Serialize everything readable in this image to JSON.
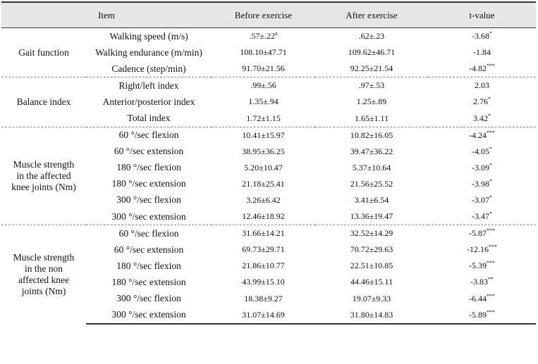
{
  "headers": {
    "item": "Item",
    "before": "Before  exercise",
    "after": "After  exercise",
    "t": "t-value"
  },
  "groups": [
    {
      "label": "Gait  function",
      "rows": [
        {
          "item": "Walking  speed  (m/s)",
          "before": ".57±.22",
          "before_sup": "a",
          "after": ".62±.23",
          "t": "-3.68",
          "sig": "*"
        },
        {
          "item": "Walking  endurance  (m/min)",
          "before": "108.10±47.71",
          "before_sup": "",
          "after": "109.62±46.71",
          "t": "-1.84",
          "sig": ""
        },
        {
          "item": "Cadence  (step/min)",
          "before": "91.70±21.56",
          "before_sup": "",
          "after": "92.25±21.54",
          "t": "-4.82",
          "sig": "***"
        }
      ]
    },
    {
      "label": "Balance  index",
      "rows": [
        {
          "item": "Right/left  index",
          "before": ".99±.56",
          "before_sup": "",
          "after": ".97±.53",
          "t": "2.03",
          "sig": ""
        },
        {
          "item": "Anterior/posterior  index",
          "before": "1.35±.94",
          "before_sup": "",
          "after": "1.25±.89",
          "t": "2.76",
          "sig": "*"
        },
        {
          "item": "Total  index",
          "before": "1.72±1.15",
          "before_sup": "",
          "after": "1.65±1.11",
          "t": "3.42",
          "sig": "*"
        }
      ]
    },
    {
      "label": "Muscle  strength\nin  the  affected\nknee  joints  (Nm)",
      "rows": [
        {
          "item": "60  °/sec  flexion",
          "before": "10.41±15.97",
          "before_sup": "",
          "after": "10.82±16.05",
          "t": "-4.24",
          "sig": "***"
        },
        {
          "item": "60  °/sec  extension",
          "before": "38.95±36.25",
          "before_sup": "",
          "after": "39.47±36.22",
          "t": "-4.05",
          "sig": "*"
        },
        {
          "item": "180  °/sec  flexion",
          "before": "5.20±10.47",
          "before_sup": "",
          "after": "5.37±10.64",
          "t": "-3.09",
          "sig": "*"
        },
        {
          "item": "180  °/sec  extension",
          "before": "21.18±25.41",
          "before_sup": "",
          "after": "21.56±25.52",
          "t": "-3.98",
          "sig": "*"
        },
        {
          "item": "300  °/sec  flexion",
          "before": "3.26±6.42",
          "before_sup": "",
          "after": "3.41±6.54",
          "t": "-3.07",
          "sig": "*"
        },
        {
          "item": "300  °/sec  extension",
          "before": "12.46±18.92",
          "before_sup": "",
          "after": "13.36±19.47",
          "t": "-3.47",
          "sig": "*"
        }
      ]
    },
    {
      "label": "Muscle  strength\nin  the  non\naffected  knee\njoints  (Nm)",
      "rows": [
        {
          "item": "60  °/sec  flexion",
          "before": "31.66±14.21",
          "before_sup": "",
          "after": "32.52±14.29",
          "t": "-5.87",
          "sig": "***"
        },
        {
          "item": "60  °/sec  extension",
          "before": "69.73±29.71",
          "before_sup": "",
          "after": "70.72±29.63",
          "t": "-12.16",
          "sig": "***"
        },
        {
          "item": "180  °/sec  flexion",
          "before": "21.86±10.77",
          "before_sup": "",
          "after": "22.51±10.85",
          "t": "-5.39",
          "sig": "***"
        },
        {
          "item": "180  °/sec  extension",
          "before": "43.99±15.10",
          "before_sup": "",
          "after": "44.46±15.11",
          "t": "-3.83",
          "sig": "**"
        },
        {
          "item": "300  °/sec  flexion",
          "before": "18.38±9.27",
          "before_sup": "",
          "after": "19.07±9.33",
          "t": "-6.44",
          "sig": "***"
        },
        {
          "item": "300  °/sec  extension",
          "before": "31.07±14.69",
          "before_sup": "",
          "after": "31.80±14.83",
          "t": "-5.89",
          "sig": "***"
        }
      ]
    }
  ]
}
